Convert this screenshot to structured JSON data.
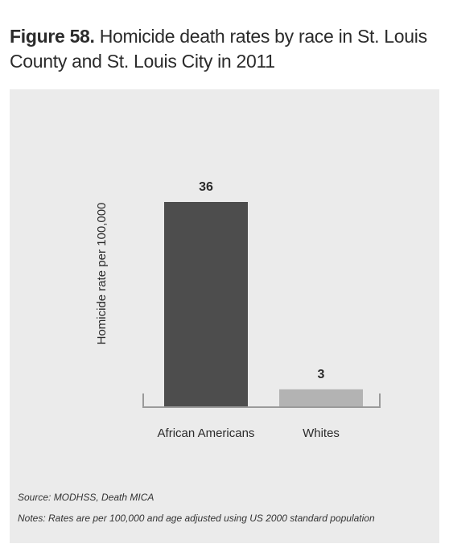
{
  "figure": {
    "label": "Figure 58.",
    "caption": "Homicide death rates by race in St. Louis County and St. Louis City in 2011"
  },
  "chart_data": {
    "type": "bar",
    "title": "Homicide death rates by race in St. Louis County and St. Louis City in 2011",
    "categories": [
      "African Americans",
      "Whites"
    ],
    "values": [
      36,
      3
    ],
    "data_labels": [
      "36",
      "3"
    ],
    "ylabel": "Homicide rate per 100,000",
    "xlabel": "",
    "ylim": [
      0,
      40
    ],
    "grid": false,
    "legend": "none",
    "colors": [
      "#4d4d4d",
      "#b3b3b3"
    ]
  },
  "footer": {
    "source": "Source: MODHSS, Death MICA",
    "notes": "Notes: Rates are per 100,000 and age adjusted using US 2000 standard population"
  },
  "colors": {
    "background_panel": "#ebebeb",
    "text": "#2b2b2b",
    "axis": "#9a9a9a"
  }
}
